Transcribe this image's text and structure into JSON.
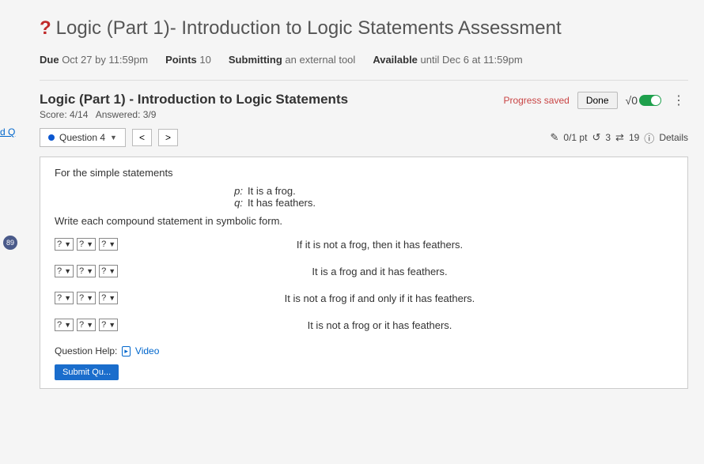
{
  "leftNav": {
    "link": "d Q",
    "badge": "89"
  },
  "header": {
    "qmark": "?",
    "title": "Logic (Part 1)- Introduction to Logic Statements Assessment"
  },
  "meta": {
    "dueLabel": "Due",
    "dueValue": "Oct 27 by 11:59pm",
    "pointsLabel": "Points",
    "pointsValue": "10",
    "submitLabel": "Submitting",
    "submitValue": "an external tool",
    "availLabel": "Available",
    "availValue": "until Dec 6 at 11:59pm"
  },
  "tool": {
    "title": "Logic (Part 1) - Introduction to Logic Statements",
    "scoreLabel": "Score: 4/14",
    "answeredLabel": "Answered: 3/9",
    "progress": "Progress saved",
    "done": "Done",
    "sqrt": "√0",
    "question": "Question 4",
    "prev": "<",
    "next": ">",
    "ptIcon": "✎",
    "ptText": "0/1 pt",
    "retryIcon": "↺",
    "retryText": "3",
    "swapIcon": "⇄",
    "swapText": "19",
    "infoIcon": "ⓘ",
    "details": "Details"
  },
  "question": {
    "intro": "For the simple statements",
    "p_var": "p:",
    "p_text": "It is a frog.",
    "q_var": "q:",
    "q_text": "It has feathers.",
    "instruction": "Write each compound statement in symbolic form.",
    "selPlaceholder": "?",
    "rows": [
      {
        "text": "If it is not a frog, then it has feathers."
      },
      {
        "text": "It is a frog and it has feathers."
      },
      {
        "text": "It is not a frog if and only if it has feathers."
      },
      {
        "text": "It is not a frog or it has feathers."
      }
    ],
    "helpLabel": "Question Help:",
    "videoIcon": "▸",
    "videoLabel": "Video",
    "submit": "Submit Qu..."
  }
}
